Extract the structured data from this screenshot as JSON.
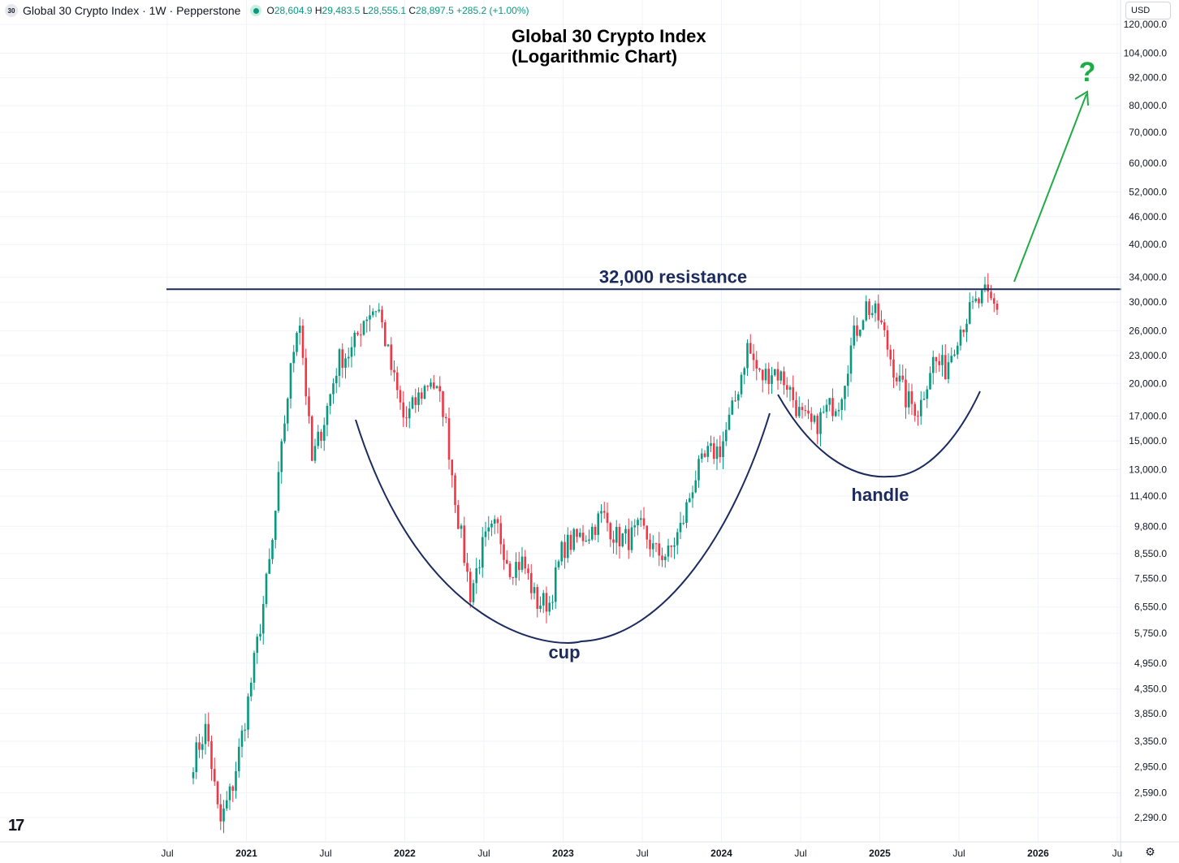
{
  "header": {
    "symbol_badge": "30",
    "title": "Global 30 Crypto Index · 1W · Pepperstone",
    "open_label": "O",
    "open": "28,604.9",
    "high_label": "H",
    "high": "29,483.5",
    "low_label": "L",
    "low": "28,555.1",
    "close_label": "C",
    "close": "28,897.5",
    "change": "+285.2 (+1.00%)",
    "currency": "USD"
  },
  "chart_data": {
    "type": "candlestick",
    "title": "Global 30 Crypto Index\n(Logarithmic Chart)",
    "title_lines": [
      "Global 30 Crypto Index",
      "(Logarithmic Chart)"
    ],
    "scale": "log",
    "y_ticks": [
      "120,000.0",
      "104,000.0",
      "92,000.0",
      "80,000.0",
      "70,000.0",
      "60,000.0",
      "52,000.0",
      "46,000.0",
      "40,000.0",
      "34,000.0",
      "30,000.0",
      "26,000.0",
      "23,000.0",
      "20,000.0",
      "17,000.0",
      "15,000.0",
      "13,000.0",
      "11,400.0",
      "9,800.0",
      "8,550.0",
      "7,550.0",
      "6,550.0",
      "5,750.0",
      "4,950.0",
      "4,350.0",
      "3,850.0",
      "3,350.0",
      "2,950.0",
      "2,590.0",
      "2,290.0"
    ],
    "x_ticks": [
      "Jul",
      "2021",
      "Jul",
      "2022",
      "Jul",
      "2023",
      "Jul",
      "2024",
      "Jul",
      "2025",
      "Jul",
      "2026",
      "Ju"
    ],
    "ylim": [
      2150,
      122000
    ],
    "grid": true,
    "colors": {
      "up": "#089981",
      "down": "#f23645",
      "annotation": "#1b2b5e",
      "arrow": "#1fab45"
    },
    "price_path": [
      [
        "2020-09",
        3050
      ],
      [
        "2020-10",
        3600
      ],
      [
        "2020-11",
        2200
      ],
      [
        "2020-12",
        2700
      ],
      [
        "2021-01",
        3850
      ],
      [
        "2021-02",
        5800
      ],
      [
        "2021-03",
        9000
      ],
      [
        "2021-04",
        17500
      ],
      [
        "2021-05",
        29000
      ],
      [
        "2021-06",
        13500
      ],
      [
        "2021-07",
        17000
      ],
      [
        "2021-08",
        22500
      ],
      [
        "2021-09",
        23500
      ],
      [
        "2021-10",
        28000
      ],
      [
        "2021-11",
        29500
      ],
      [
        "2021-12",
        21500
      ],
      [
        "2022-01",
        16500
      ],
      [
        "2022-02",
        18500
      ],
      [
        "2022-03",
        20500
      ],
      [
        "2022-04",
        17500
      ],
      [
        "2022-05",
        10500
      ],
      [
        "2022-06",
        7000
      ],
      [
        "2022-07",
        9000
      ],
      [
        "2022-08",
        9800
      ],
      [
        "2022-09",
        8000
      ],
      [
        "2022-10",
        8200
      ],
      [
        "2022-11",
        6700
      ],
      [
        "2022-12",
        6700
      ],
      [
        "2023-01",
        8800
      ],
      [
        "2023-02",
        9200
      ],
      [
        "2023-03",
        9500
      ],
      [
        "2023-04",
        10400
      ],
      [
        "2023-05",
        9300
      ],
      [
        "2023-06",
        9200
      ],
      [
        "2023-07",
        9700
      ],
      [
        "2023-08",
        8600
      ],
      [
        "2023-09",
        8500
      ],
      [
        "2023-10",
        9800
      ],
      [
        "2023-11",
        12500
      ],
      [
        "2023-12",
        14000
      ],
      [
        "2024-01",
        14500
      ],
      [
        "2024-02",
        18000
      ],
      [
        "2024-03",
        24000
      ],
      [
        "2024-04",
        20500
      ],
      [
        "2024-05",
        21500
      ],
      [
        "2024-06",
        20000
      ],
      [
        "2024-07",
        17000
      ],
      [
        "2024-08",
        16000
      ],
      [
        "2024-09",
        17500
      ],
      [
        "2024-10",
        18500
      ],
      [
        "2024-11",
        25000
      ],
      [
        "2024-12",
        29500
      ],
      [
        "2025-01",
        27500
      ],
      [
        "2025-02",
        22000
      ],
      [
        "2025-03",
        18500
      ],
      [
        "2025-04",
        17500
      ],
      [
        "2025-05",
        22500
      ],
      [
        "2025-06",
        21500
      ],
      [
        "2025-07",
        26000
      ],
      [
        "2025-08",
        29000
      ],
      [
        "2025-09",
        31000
      ],
      [
        "2025-10",
        28897.5
      ]
    ],
    "resistance": {
      "value": 32000,
      "label": "32,000 resistance"
    },
    "annotations": {
      "cup": "cup",
      "handle": "handle",
      "question": "?"
    }
  }
}
